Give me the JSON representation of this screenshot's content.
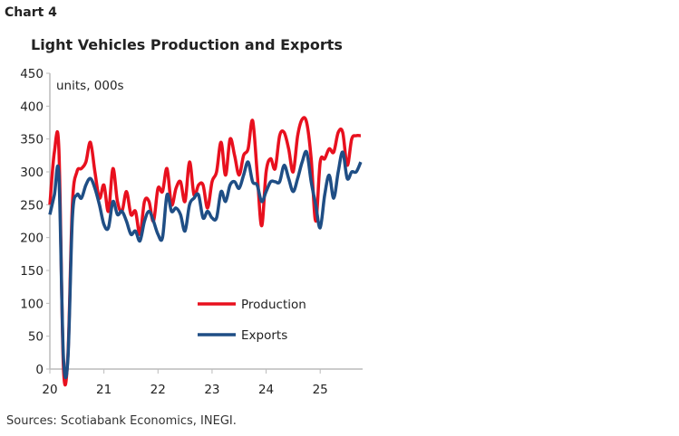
{
  "header": {
    "chart_no": "Chart 4",
    "source": "Sources: Scotiabank Economics, INEGI."
  },
  "chart_data": {
    "type": "line",
    "title": "Light Vehicles Production and Exports",
    "unit_label": "units, 000s",
    "xlabel": "",
    "ylabel": "",
    "ylim": [
      0,
      450
    ],
    "yticks": [
      0,
      50,
      100,
      150,
      200,
      250,
      300,
      350,
      400,
      450
    ],
    "xtick_labels": [
      "20",
      "21",
      "22",
      "23",
      "24",
      "25"
    ],
    "x_start": "2020-01",
    "frequency": "monthly",
    "x_end": "2025-10",
    "grid": false,
    "legend_position": "center-right",
    "series": [
      {
        "name": "Production",
        "color": "#e8101e",
        "values": [
          250,
          330,
          335,
          5,
          20,
          250,
          300,
          305,
          315,
          345,
          300,
          260,
          280,
          240,
          305,
          255,
          240,
          270,
          235,
          240,
          205,
          255,
          255,
          225,
          275,
          270,
          305,
          250,
          275,
          285,
          255,
          315,
          265,
          280,
          280,
          245,
          285,
          300,
          345,
          295,
          350,
          325,
          295,
          325,
          335,
          378,
          300,
          218,
          300,
          320,
          305,
          355,
          360,
          335,
          300,
          355,
          380,
          375,
          320,
          225,
          315,
          320,
          335,
          330,
          360,
          360,
          310,
          350,
          355,
          355
        ]
      },
      {
        "name": "Exports",
        "color": "#1f4e85",
        "values": [
          235,
          265,
          295,
          20,
          15,
          230,
          265,
          260,
          280,
          290,
          275,
          250,
          220,
          215,
          255,
          235,
          240,
          225,
          205,
          210,
          195,
          225,
          240,
          225,
          205,
          200,
          265,
          240,
          245,
          235,
          210,
          250,
          260,
          265,
          230,
          240,
          230,
          230,
          270,
          255,
          280,
          285,
          275,
          295,
          315,
          285,
          280,
          255,
          270,
          285,
          285,
          285,
          310,
          290,
          270,
          290,
          315,
          330,
          285,
          250,
          215,
          265,
          295,
          260,
          300,
          330,
          290,
          300,
          300,
          315
        ]
      }
    ]
  }
}
